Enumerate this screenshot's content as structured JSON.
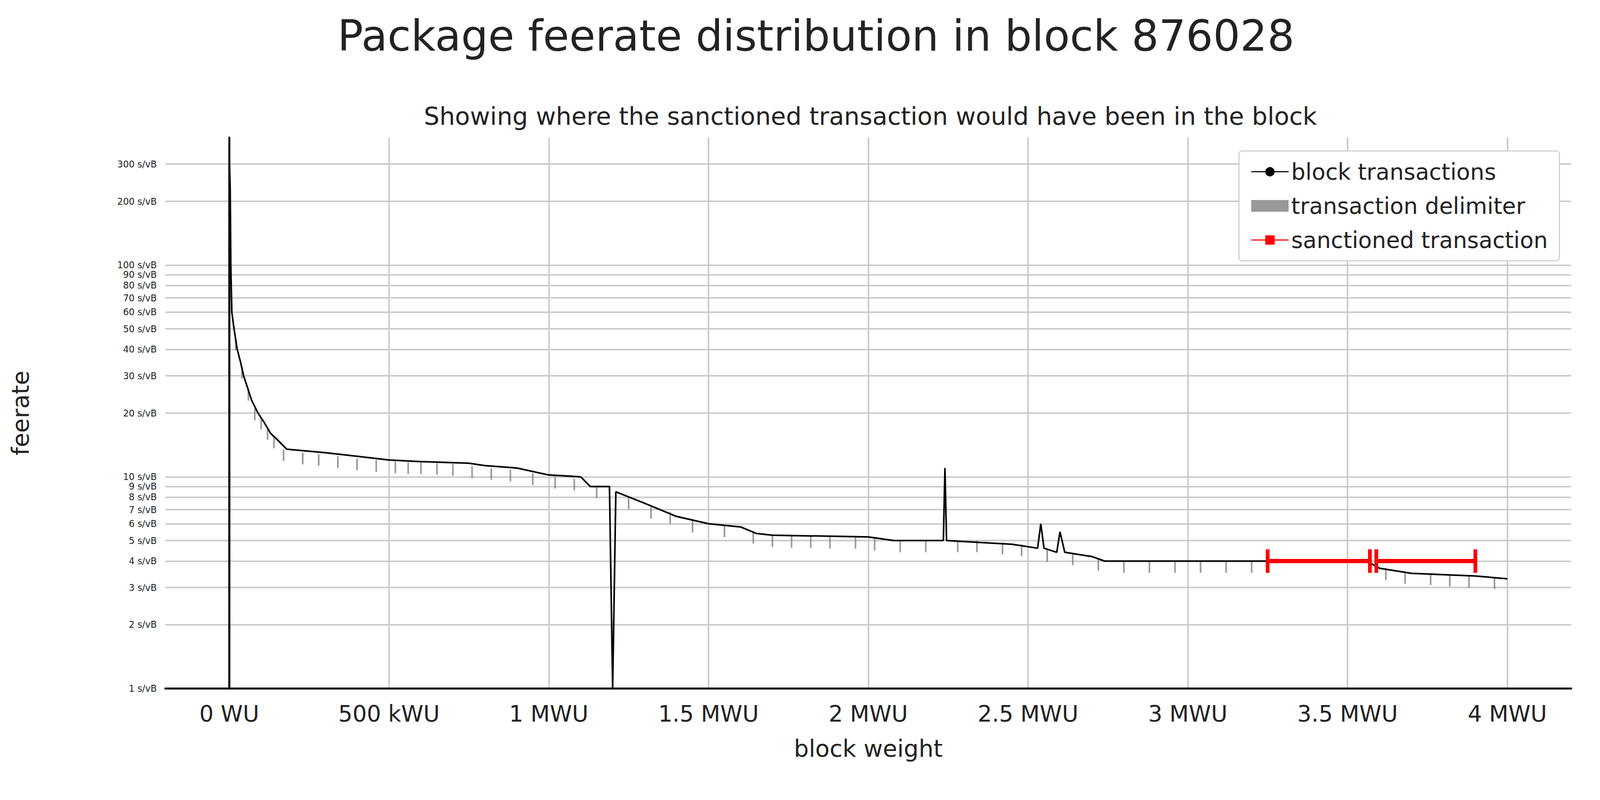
{
  "chart_data": {
    "type": "line",
    "title": "Package feerate distribution in block 876028",
    "subtitle": "Showing where the sanctioned transaction would have been in the block",
    "x_label": "block weight",
    "y_label": "feerate",
    "log": "y",
    "grid": true,
    "legend": "upper right",
    "xlim": [
      -200000,
      4200000
    ],
    "ylim": [
      1,
      400
    ],
    "xticks": [
      {
        "value": 0,
        "label": "0 WU"
      },
      {
        "value": 500000,
        "label": "500 kWU"
      },
      {
        "value": 1000000,
        "label": "1 MWU"
      },
      {
        "value": 1500000,
        "label": "1.5 MWU"
      },
      {
        "value": 2000000,
        "label": "2 MWU"
      },
      {
        "value": 2500000,
        "label": "2.5 MWU"
      },
      {
        "value": 3000000,
        "label": "3 MWU"
      },
      {
        "value": 3500000,
        "label": "3.5 MWU"
      },
      {
        "value": 4000000,
        "label": "4 MWU"
      }
    ],
    "yticks": [
      {
        "value": 1,
        "label": "1 s/vB"
      },
      {
        "value": 2,
        "label": "2 s/vB"
      },
      {
        "value": 3,
        "label": "3 s/vB"
      },
      {
        "value": 4,
        "label": "4 s/vB"
      },
      {
        "value": 5,
        "label": "5 s/vB"
      },
      {
        "value": 6,
        "label": "6 s/vB"
      },
      {
        "value": 7,
        "label": "7 s/vB"
      },
      {
        "value": 8,
        "label": "8 s/vB"
      },
      {
        "value": 9,
        "label": "9 s/vB"
      },
      {
        "value": 10,
        "label": "10 s/vB"
      },
      {
        "value": 20,
        "label": "20 s/vB"
      },
      {
        "value": 30,
        "label": "30 s/vB"
      },
      {
        "value": 40,
        "label": "40 s/vB"
      },
      {
        "value": 50,
        "label": "50 s/vB"
      },
      {
        "value": 60,
        "label": "60 s/vB"
      },
      {
        "value": 70,
        "label": "70 s/vB"
      },
      {
        "value": 80,
        "label": "80 s/vB"
      },
      {
        "value": 90,
        "label": "90 s/vB"
      },
      {
        "value": 100,
        "label": "100 s/vB"
      },
      {
        "value": 200,
        "label": "200 s/vB"
      },
      {
        "value": 300,
        "label": "300 s/vB"
      }
    ],
    "series": [
      {
        "name": "block transactions",
        "type": "line",
        "color": "#000000",
        "marker": "none",
        "x": [
          0,
          1000,
          3000,
          5000,
          8000,
          15000,
          25000,
          35000,
          45000,
          55000,
          70000,
          90000,
          110000,
          130000,
          150000,
          180000,
          300000,
          400000,
          500000,
          600000,
          750000,
          800000,
          900000,
          1000000,
          1100000,
          1130000,
          1190000,
          1200000,
          1210000,
          1300000,
          1400000,
          1500000,
          1600000,
          1650000,
          1700000,
          2000000,
          2080000,
          2235000,
          2240000,
          2245000,
          2450000,
          2530000,
          2540000,
          2550000,
          2590000,
          2600000,
          2615000,
          2700000,
          2740000,
          3250000,
          3560000,
          3600000,
          3700000,
          3900000,
          4000000
        ],
        "values": [
          1,
          300,
          230,
          100,
          60,
          50,
          40,
          35,
          30,
          27,
          23,
          20,
          18,
          16,
          15,
          13.5,
          13,
          12.5,
          12,
          11.8,
          11.6,
          11.3,
          11,
          10.2,
          10,
          9,
          9,
          1,
          8.5,
          7.5,
          6.5,
          6,
          5.8,
          5.4,
          5.3,
          5.2,
          5.0,
          5.0,
          11,
          5.0,
          4.8,
          4.6,
          6,
          4.6,
          4.4,
          5.5,
          4.4,
          4.2,
          4.0,
          4.0,
          4.0,
          3.7,
          3.5,
          3.4,
          3.3
        ]
      },
      {
        "name": "transaction delimiter",
        "type": "scatter",
        "color": "#808080",
        "marker": "vline",
        "x": [
          20000,
          40000,
          60000,
          80000,
          100000,
          120000,
          140000,
          170000,
          230000,
          280000,
          340000,
          400000,
          460000,
          520000,
          560000,
          600000,
          650000,
          700000,
          760000,
          820000,
          880000,
          950000,
          1020000,
          1080000,
          1150000,
          1250000,
          1320000,
          1380000,
          1450000,
          1550000,
          1640000,
          1700000,
          1760000,
          1820000,
          1880000,
          1960000,
          2020000,
          2100000,
          2180000,
          2280000,
          2340000,
          2420000,
          2480000,
          2560000,
          2640000,
          2720000,
          2800000,
          2880000,
          2960000,
          3040000,
          3120000,
          3200000,
          3620000,
          3680000,
          3760000,
          3820000,
          3880000,
          3960000
        ],
        "values": [
          45,
          33,
          26,
          21,
          19,
          17,
          15.5,
          13.5,
          13,
          12.8,
          12.5,
          12.2,
          12,
          11.8,
          11.7,
          11.7,
          11.6,
          11.5,
          11.2,
          11,
          10.8,
          10.4,
          10,
          9.8,
          9,
          8,
          7.2,
          6.8,
          6.2,
          5.9,
          5.5,
          5.3,
          5.25,
          5.25,
          5.2,
          5.2,
          5.1,
          5,
          5,
          5,
          5,
          4.9,
          4.8,
          4.5,
          4.35,
          4.1,
          4,
          4,
          4,
          4,
          4,
          4,
          3.7,
          3.55,
          3.5,
          3.45,
          3.4,
          3.35
        ]
      },
      {
        "name": "sanctioned transaction",
        "type": "line",
        "color": "#ff0000",
        "marker": "vline",
        "x": [
          3250000,
          3570000,
          3580000,
          3590000,
          3900000
        ],
        "values": [
          4.0,
          4.0,
          null,
          4.0,
          4.0
        ]
      }
    ]
  }
}
